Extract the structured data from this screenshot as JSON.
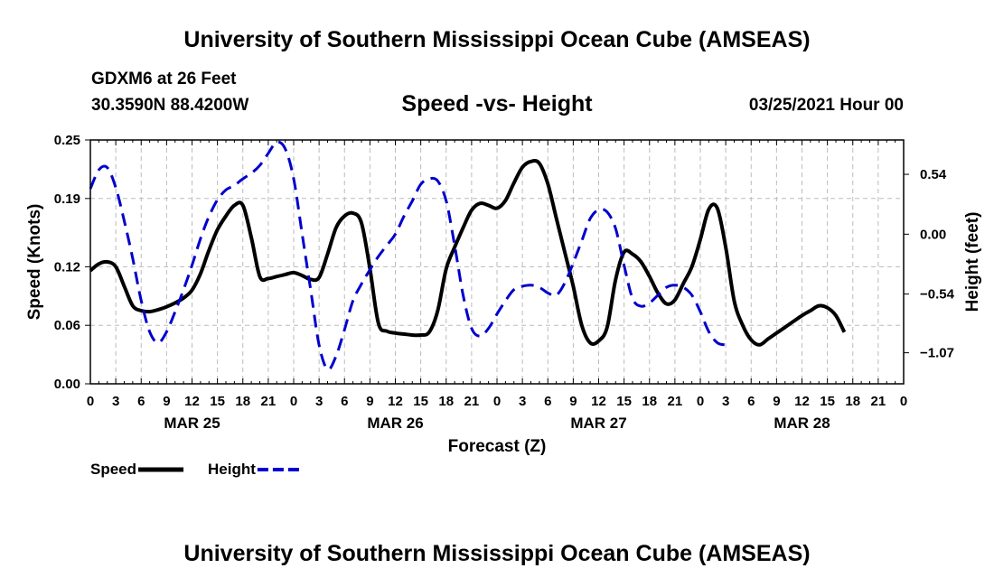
{
  "header": {
    "title": "University of Southern Mississippi Ocean Cube (AMSEAS)",
    "station": "GDXM6 at 26 Feet",
    "coords": "30.3590N  88.4200W",
    "date": "03/25/2021 Hour 00"
  },
  "footer": {
    "title": "University of Southern Mississippi Ocean Cube (AMSEAS)"
  },
  "colors": {
    "speed": "#000000",
    "height": "#0000cc",
    "grid": "#bbbbbb"
  },
  "chart_data": {
    "type": "line",
    "title": "Speed -vs- Height",
    "xlabel": "Forecast (Z)",
    "ylabel_left": "Speed (Knots)",
    "ylabel_right": "Height (feet)",
    "x_range_hours": [
      0,
      96
    ],
    "x_tick_labels": [
      "0",
      "3",
      "6",
      "9",
      "12",
      "15",
      "18",
      "21",
      "0",
      "3",
      "6",
      "9",
      "12",
      "15",
      "18",
      "21",
      "0",
      "3",
      "6",
      "9",
      "12",
      "15",
      "18",
      "21",
      "0",
      "3",
      "6",
      "9",
      "12",
      "15",
      "18",
      "21",
      "0"
    ],
    "day_labels": [
      {
        "label": "MAR 25",
        "hour": 12
      },
      {
        "label": "MAR 26",
        "hour": 36
      },
      {
        "label": "MAR 27",
        "hour": 60
      },
      {
        "label": "MAR 28",
        "hour": 84
      }
    ],
    "y_left_range": [
      0,
      0.25
    ],
    "y_left_ticks": [
      "0.25",
      "0.19",
      "0.12",
      "0.06",
      "0.00"
    ],
    "y_left_tick_values": [
      0.25,
      0.19,
      0.12,
      0.06,
      0.0
    ],
    "y_right_range": [
      -1.35,
      0.85
    ],
    "y_right_ticks": [
      "0.54",
      "0.00",
      "−0.54",
      "−1.07"
    ],
    "y_right_tick_values": [
      0.54,
      0.0,
      -0.54,
      -1.07
    ],
    "grid": true,
    "series": [
      {
        "name": "Speed",
        "axis": "left",
        "style": "solid",
        "points": [
          [
            0,
            0.116
          ],
          [
            1,
            0.123
          ],
          [
            2,
            0.125
          ],
          [
            3,
            0.12
          ],
          [
            4,
            0.1
          ],
          [
            5,
            0.08
          ],
          [
            6,
            0.075
          ],
          [
            7,
            0.074
          ],
          [
            8,
            0.076
          ],
          [
            9,
            0.079
          ],
          [
            10,
            0.083
          ],
          [
            11,
            0.088
          ],
          [
            12,
            0.096
          ],
          [
            13,
            0.113
          ],
          [
            14,
            0.137
          ],
          [
            15,
            0.158
          ],
          [
            16,
            0.172
          ],
          [
            17,
            0.183
          ],
          [
            18,
            0.183
          ],
          [
            19,
            0.15
          ],
          [
            20,
            0.11
          ],
          [
            21,
            0.108
          ],
          [
            22,
            0.11
          ],
          [
            23,
            0.112
          ],
          [
            24,
            0.114
          ],
          [
            25,
            0.111
          ],
          [
            26,
            0.107
          ],
          [
            27,
            0.109
          ],
          [
            28,
            0.133
          ],
          [
            29,
            0.16
          ],
          [
            30,
            0.172
          ],
          [
            31,
            0.175
          ],
          [
            32,
            0.165
          ],
          [
            33,
            0.118
          ],
          [
            34,
            0.062
          ],
          [
            35,
            0.054
          ],
          [
            36,
            0.052
          ],
          [
            37,
            0.051
          ],
          [
            38,
            0.05
          ],
          [
            39,
            0.05
          ],
          [
            40,
            0.053
          ],
          [
            41,
            0.075
          ],
          [
            42,
            0.118
          ],
          [
            43,
            0.14
          ],
          [
            44,
            0.16
          ],
          [
            45,
            0.178
          ],
          [
            46,
            0.185
          ],
          [
            47,
            0.183
          ],
          [
            48,
            0.18
          ],
          [
            49,
            0.188
          ],
          [
            50,
            0.206
          ],
          [
            51,
            0.222
          ],
          [
            52,
            0.228
          ],
          [
            53,
            0.226
          ],
          [
            54,
            0.205
          ],
          [
            55,
            0.17
          ],
          [
            56,
            0.135
          ],
          [
            57,
            0.1
          ],
          [
            58,
            0.06
          ],
          [
            59,
            0.042
          ],
          [
            60,
            0.044
          ],
          [
            61,
            0.058
          ],
          [
            62,
            0.107
          ],
          [
            63,
            0.135
          ],
          [
            64,
            0.133
          ],
          [
            65,
            0.125
          ],
          [
            66,
            0.11
          ],
          [
            67,
            0.093
          ],
          [
            68,
            0.082
          ],
          [
            69,
            0.086
          ],
          [
            70,
            0.103
          ],
          [
            71,
            0.12
          ],
          [
            72,
            0.148
          ],
          [
            73,
            0.179
          ],
          [
            74,
            0.18
          ],
          [
            75,
            0.14
          ],
          [
            76,
            0.085
          ],
          [
            77,
            0.06
          ],
          [
            78,
            0.045
          ],
          [
            79,
            0.04
          ],
          [
            80,
            0.046
          ],
          [
            81,
            0.052
          ],
          [
            82,
            0.058
          ],
          [
            83,
            0.064
          ],
          [
            84,
            0.07
          ],
          [
            85,
            0.075
          ],
          [
            86,
            0.08
          ],
          [
            87,
            0.078
          ],
          [
            88,
            0.07
          ],
          [
            89,
            0.053
          ]
        ]
      },
      {
        "name": "Height",
        "axis": "right",
        "style": "dashed",
        "points": [
          [
            0,
            0.41
          ],
          [
            1,
            0.58
          ],
          [
            2,
            0.6
          ],
          [
            3,
            0.42
          ],
          [
            4,
            0.12
          ],
          [
            5,
            -0.22
          ],
          [
            6,
            -0.6
          ],
          [
            7,
            -0.88
          ],
          [
            8,
            -0.98
          ],
          [
            9,
            -0.88
          ],
          [
            10,
            -0.7
          ],
          [
            11,
            -0.5
          ],
          [
            12,
            -0.28
          ],
          [
            13,
            -0.04
          ],
          [
            14,
            0.16
          ],
          [
            15,
            0.31
          ],
          [
            16,
            0.4
          ],
          [
            17,
            0.44
          ],
          [
            18,
            0.5
          ],
          [
            19,
            0.55
          ],
          [
            20,
            0.62
          ],
          [
            21,
            0.73
          ],
          [
            22,
            0.83
          ],
          [
            23,
            0.77
          ],
          [
            24,
            0.5
          ],
          [
            25,
            0.0
          ],
          [
            26,
            -0.5
          ],
          [
            27,
            -1.0
          ],
          [
            28,
            -1.22
          ],
          [
            29,
            -1.1
          ],
          [
            30,
            -0.86
          ],
          [
            31,
            -0.6
          ],
          [
            32,
            -0.45
          ],
          [
            33,
            -0.32
          ],
          [
            34,
            -0.2
          ],
          [
            35,
            -0.1
          ],
          [
            36,
            0.0
          ],
          [
            37,
            0.16
          ],
          [
            38,
            0.3
          ],
          [
            39,
            0.45
          ],
          [
            40,
            0.5
          ],
          [
            41,
            0.48
          ],
          [
            42,
            0.3
          ],
          [
            43,
            -0.1
          ],
          [
            44,
            -0.55
          ],
          [
            45,
            -0.85
          ],
          [
            46,
            -0.92
          ],
          [
            47,
            -0.85
          ],
          [
            48,
            -0.72
          ],
          [
            49,
            -0.6
          ],
          [
            50,
            -0.5
          ],
          [
            51,
            -0.47
          ],
          [
            52,
            -0.46
          ],
          [
            53,
            -0.48
          ],
          [
            54,
            -0.53
          ],
          [
            55,
            -0.55
          ],
          [
            56,
            -0.44
          ],
          [
            57,
            -0.26
          ],
          [
            58,
            -0.06
          ],
          [
            59,
            0.14
          ],
          [
            60,
            0.22
          ],
          [
            61,
            0.2
          ],
          [
            62,
            0.05
          ],
          [
            63,
            -0.28
          ],
          [
            64,
            -0.58
          ],
          [
            65,
            -0.65
          ],
          [
            66,
            -0.62
          ],
          [
            67,
            -0.55
          ],
          [
            68,
            -0.48
          ],
          [
            69,
            -0.46
          ],
          [
            70,
            -0.48
          ],
          [
            71,
            -0.55
          ],
          [
            72,
            -0.7
          ],
          [
            73,
            -0.88
          ],
          [
            74,
            -0.98
          ],
          [
            75,
            -1.0
          ]
        ]
      }
    ],
    "legend": [
      {
        "label": "Speed",
        "style": "solid"
      },
      {
        "label": "Height",
        "style": "dashed"
      }
    ],
    "legend_position": "bottom-left"
  }
}
